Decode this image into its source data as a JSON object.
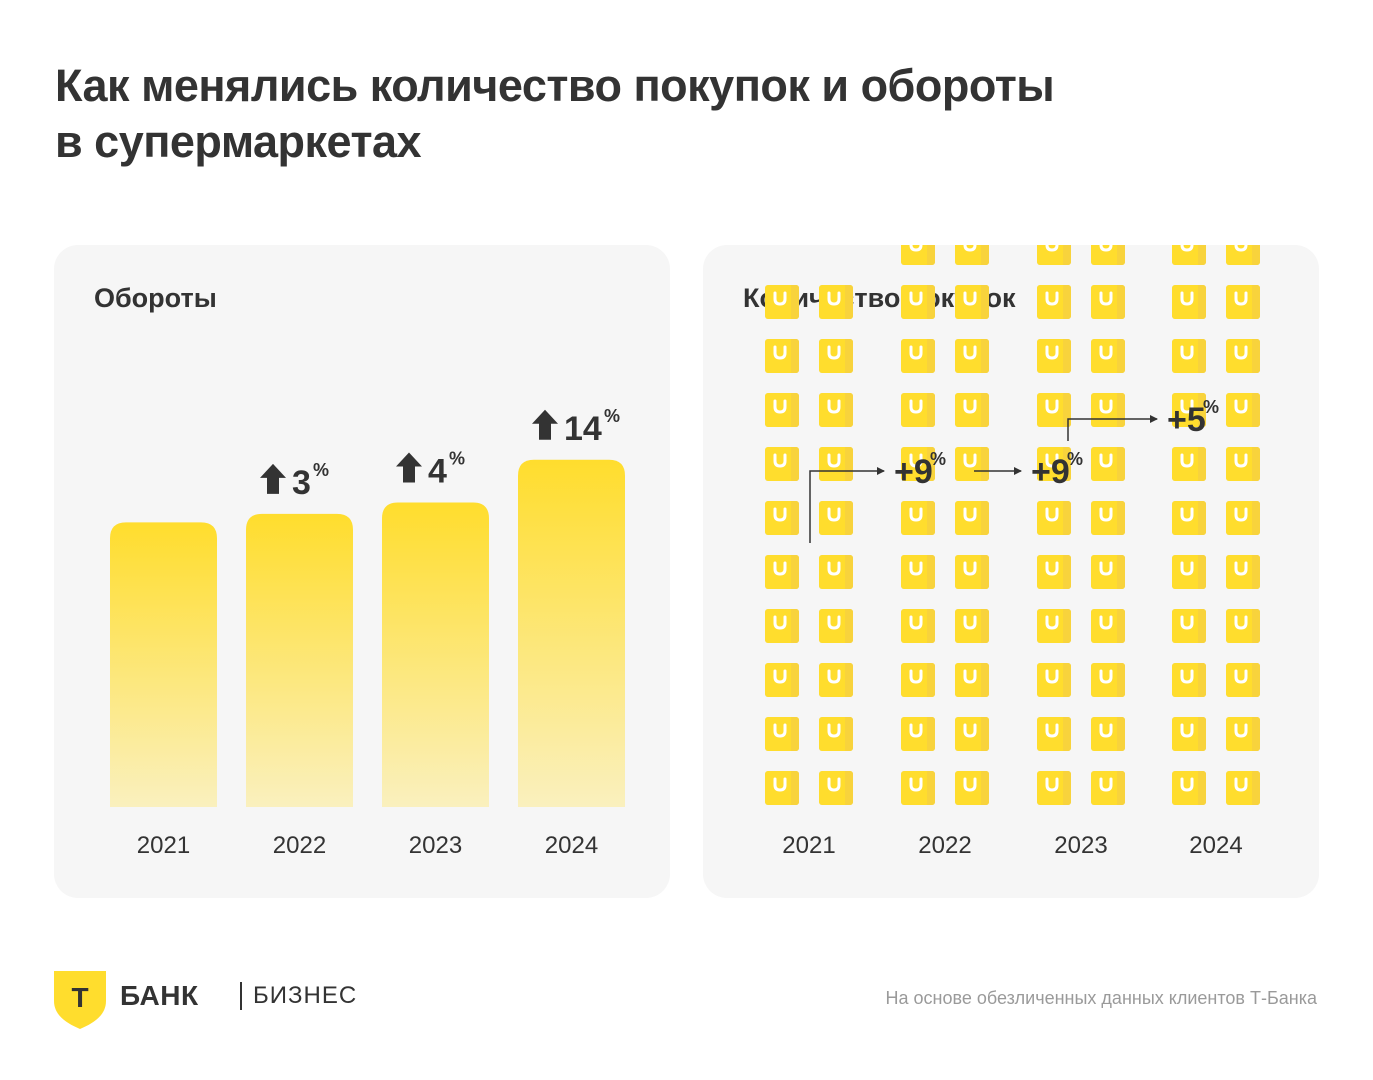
{
  "title": {
    "line1": "Как менялись количество покупок и обороты",
    "line2": "в супермаркетах"
  },
  "chart_data": [
    {
      "type": "bar",
      "title": "Обороты",
      "categories": [
        "2021",
        "2022",
        "2023",
        "2024"
      ],
      "values": [
        100,
        103,
        107,
        122
      ],
      "growth_labels": [
        "",
        "3",
        "4",
        "14"
      ],
      "percent_sign": "%",
      "growth_icon": "arrow-up-icon",
      "ylim": [
        0,
        130
      ],
      "grid": false,
      "colors": {
        "bar_top": "#FFDD2D",
        "bar_bottom": "#FAF0BE",
        "text": "#333333"
      }
    },
    {
      "type": "bar",
      "title": "Количество покупок",
      "categories": [
        "2021",
        "2022",
        "2023",
        "2024"
      ],
      "values": [
        10,
        10.9,
        11.9,
        12.5
      ],
      "growth_labels": [
        "+9",
        "+9",
        "+5"
      ],
      "percent_sign": "%",
      "unit_icon": "shopping-bag-icon",
      "grid": false,
      "colors": {
        "bag": "#FFDD2D",
        "bag_shade": "#F7D23E",
        "bag_empty": "#D9D9D9",
        "text": "#333333"
      }
    }
  ],
  "footer": {
    "logo_letter": "Т",
    "brand_name": "БАНК",
    "brand_sub": "БИЗНЕС",
    "source": "На основе обезличенных данных клиентов Т-Банка",
    "brand_color": "#FFDD2D"
  }
}
